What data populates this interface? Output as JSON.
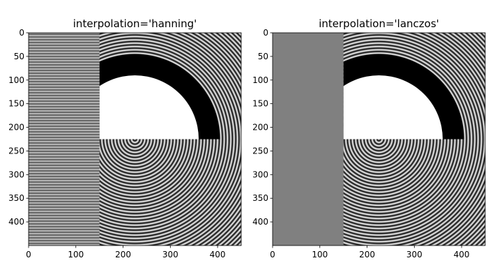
{
  "chart_data": [
    {
      "type": "heatmap",
      "title": "interpolation='hanning'",
      "colormap": "gray",
      "image_size": [
        450,
        450
      ],
      "xlim": [
        0,
        450
      ],
      "ylim": [
        450,
        0
      ],
      "xticks": [
        0,
        100,
        200,
        300,
        400
      ],
      "yticks": [
        0,
        50,
        100,
        150,
        200,
        250,
        300,
        350,
        400
      ],
      "xtick_labels": [
        "0",
        "100",
        "200",
        "300",
        "400"
      ],
      "ytick_labels": [
        "0",
        "50",
        "100",
        "150",
        "200",
        "250",
        "300",
        "350",
        "400"
      ],
      "regions": {
        "stripe_band_x_max": 150,
        "split_y": 225,
        "center": [
          225,
          225
        ],
        "half_disk_radius": 135,
        "ring_band_radius": [
          135,
          180
        ]
      },
      "stripe_band": "horizontal fine stripes (aliased gray)"
    },
    {
      "type": "heatmap",
      "title": "interpolation='lanczos'",
      "colormap": "gray",
      "image_size": [
        450,
        450
      ],
      "xlim": [
        0,
        450
      ],
      "ylim": [
        450,
        0
      ],
      "xticks": [
        0,
        100,
        200,
        300,
        400
      ],
      "yticks": [
        0,
        50,
        100,
        150,
        200,
        250,
        300,
        350,
        400
      ],
      "xtick_labels": [
        "0",
        "100",
        "200",
        "300",
        "400"
      ],
      "ytick_labels": [
        "0",
        "50",
        "100",
        "150",
        "200",
        "250",
        "300",
        "350",
        "400"
      ],
      "regions": {
        "stripe_band_x_max": 150,
        "split_y": 225,
        "center": [
          225,
          225
        ],
        "half_disk_radius": 135,
        "ring_band_radius": [
          135,
          180
        ]
      },
      "stripe_band": "uniform gray"
    }
  ]
}
